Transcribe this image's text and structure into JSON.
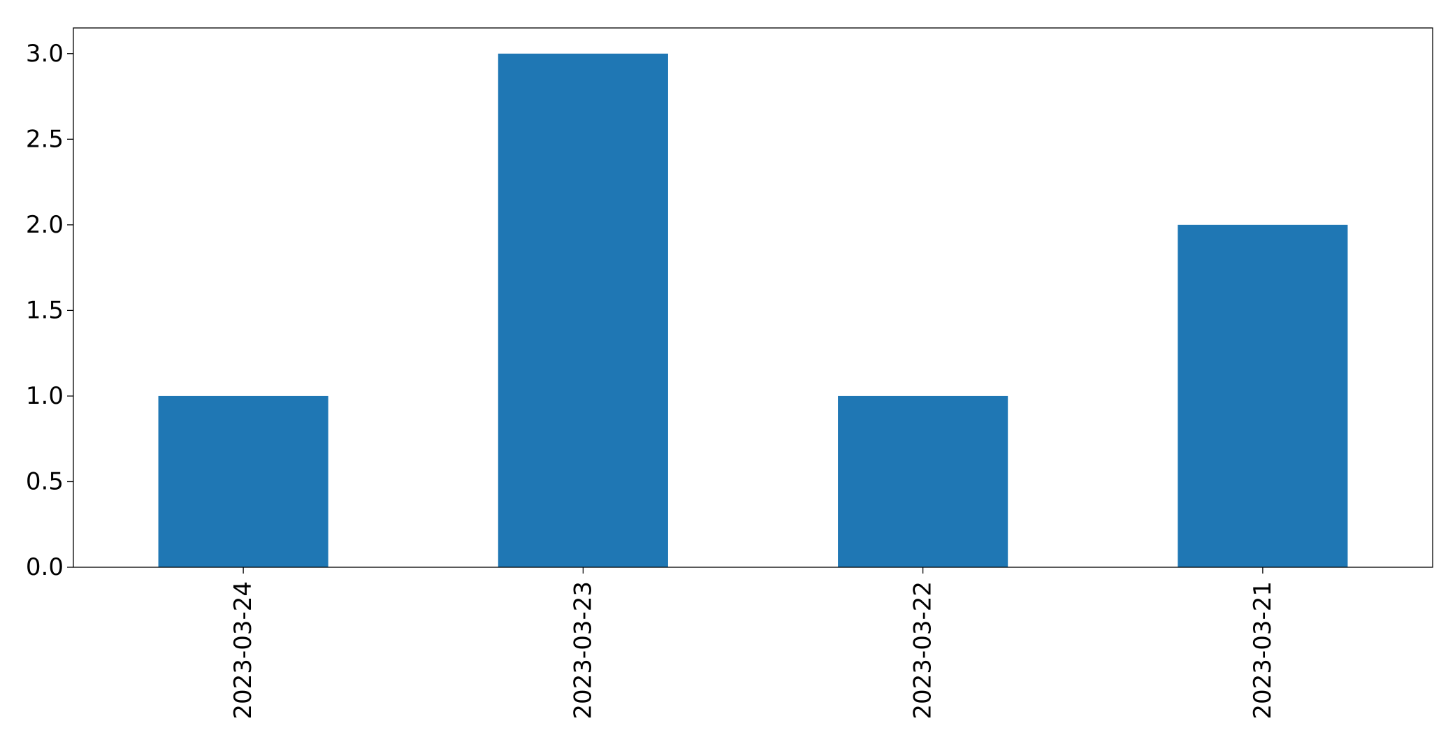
{
  "chart_data": {
    "type": "bar",
    "categories": [
      "2023-03-24",
      "2023-03-23",
      "2023-03-22",
      "2023-03-21"
    ],
    "values": [
      1,
      3,
      1,
      2
    ],
    "title": "",
    "xlabel": "",
    "ylabel": "",
    "ylim": [
      0,
      3.15
    ],
    "yticks": [
      0.0,
      0.5,
      1.0,
      1.5,
      2.0,
      2.5,
      3.0
    ],
    "ytick_labels": [
      "0.0",
      "0.5",
      "1.0",
      "1.5",
      "2.0",
      "2.5",
      "3.0"
    ],
    "grid": false,
    "legend": "none",
    "xtick_rotation": "vertical",
    "bar_color": "#1f77b4"
  }
}
